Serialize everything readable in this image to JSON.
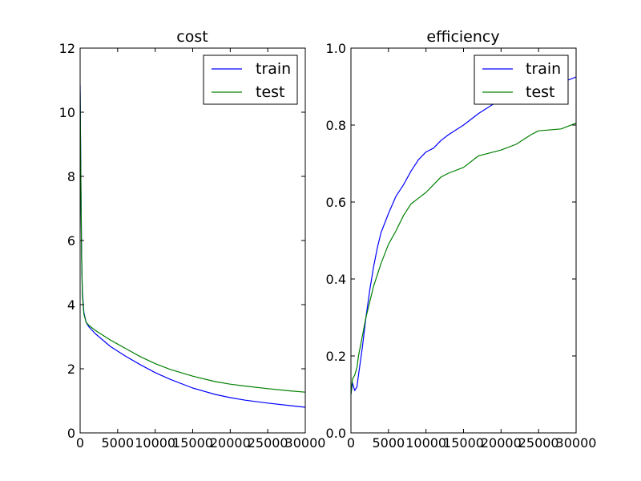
{
  "chart_data": [
    {
      "type": "line",
      "title": "cost",
      "xlabel": "",
      "ylabel": "",
      "xlim": [
        0,
        30000
      ],
      "ylim": [
        0,
        12
      ],
      "x_ticks": [
        0,
        5000,
        10000,
        15000,
        20000,
        25000,
        30000
      ],
      "y_ticks": [
        0,
        2,
        4,
        6,
        8,
        10,
        12
      ],
      "x_tick_labels": [
        "0",
        "5000",
        "10000",
        "15000",
        "20000",
        "25000",
        "30000"
      ],
      "y_tick_labels": [
        "0",
        "2",
        "4",
        "6",
        "8",
        "10",
        "12"
      ],
      "grid": false,
      "legend_position": "upper-right",
      "series": [
        {
          "name": "train",
          "color": "#0000ff",
          "x": [
            0,
            100,
            200,
            300,
            500,
            800,
            1200,
            2000,
            3000,
            4000,
            5000,
            6000,
            8000,
            10000,
            12000,
            15000,
            18000,
            20000,
            22000,
            25000,
            28000,
            30000
          ],
          "y": [
            10.85,
            8.0,
            5.5,
            4.4,
            3.75,
            3.45,
            3.3,
            3.1,
            2.9,
            2.7,
            2.55,
            2.4,
            2.13,
            1.88,
            1.67,
            1.4,
            1.2,
            1.1,
            1.02,
            0.93,
            0.85,
            0.8
          ]
        },
        {
          "name": "test",
          "color": "#008000",
          "x": [
            0,
            100,
            200,
            300,
            500,
            800,
            1200,
            2000,
            3000,
            4000,
            5000,
            6000,
            8000,
            10000,
            12000,
            15000,
            18000,
            20000,
            22000,
            25000,
            28000,
            30000
          ],
          "y": [
            10.6,
            7.8,
            5.4,
            4.3,
            3.7,
            3.45,
            3.35,
            3.2,
            3.05,
            2.9,
            2.77,
            2.64,
            2.38,
            2.16,
            1.98,
            1.77,
            1.6,
            1.52,
            1.46,
            1.38,
            1.31,
            1.27
          ]
        }
      ]
    },
    {
      "type": "line",
      "title": "efficiency",
      "xlabel": "",
      "ylabel": "",
      "xlim": [
        0,
        30000
      ],
      "ylim": [
        0,
        1.0
      ],
      "x_ticks": [
        0,
        5000,
        10000,
        15000,
        20000,
        25000,
        30000
      ],
      "y_ticks": [
        0,
        0.2,
        0.4,
        0.6,
        0.8,
        1.0
      ],
      "x_tick_labels": [
        "0",
        "5000",
        "10000",
        "15000",
        "20000",
        "25000",
        "30000"
      ],
      "y_tick_labels": [
        "0.0",
        "0.2",
        "0.4",
        "0.6",
        "0.8",
        "1.0"
      ],
      "grid": false,
      "legend_position": "upper-right",
      "series": [
        {
          "name": "train",
          "color": "#0000ff",
          "x": [
            0,
            200,
            500,
            800,
            1000,
            1500,
            2000,
            2500,
            3000,
            3500,
            4000,
            5000,
            6000,
            7000,
            8000,
            9000,
            10000,
            11000,
            12000,
            13000,
            15000,
            17000,
            19000,
            20000,
            22000,
            25000,
            28000,
            30000
          ],
          "y": [
            0.1,
            0.13,
            0.11,
            0.12,
            0.15,
            0.22,
            0.3,
            0.37,
            0.43,
            0.48,
            0.52,
            0.57,
            0.615,
            0.645,
            0.68,
            0.71,
            0.73,
            0.74,
            0.76,
            0.775,
            0.8,
            0.83,
            0.855,
            0.865,
            0.88,
            0.9,
            0.91,
            0.925
          ]
        },
        {
          "name": "test",
          "color": "#008000",
          "x": [
            0,
            200,
            500,
            800,
            1000,
            1500,
            2000,
            2500,
            3000,
            3500,
            4000,
            5000,
            6000,
            7000,
            8000,
            9000,
            10000,
            11000,
            12000,
            13000,
            15000,
            17000,
            19000,
            20000,
            22000,
            24000,
            25000,
            28000,
            30000
          ],
          "y": [
            0.1,
            0.14,
            0.15,
            0.17,
            0.2,
            0.25,
            0.3,
            0.34,
            0.38,
            0.41,
            0.44,
            0.49,
            0.525,
            0.565,
            0.595,
            0.61,
            0.625,
            0.645,
            0.665,
            0.675,
            0.69,
            0.72,
            0.73,
            0.735,
            0.75,
            0.775,
            0.785,
            0.79,
            0.805
          ]
        }
      ]
    }
  ]
}
